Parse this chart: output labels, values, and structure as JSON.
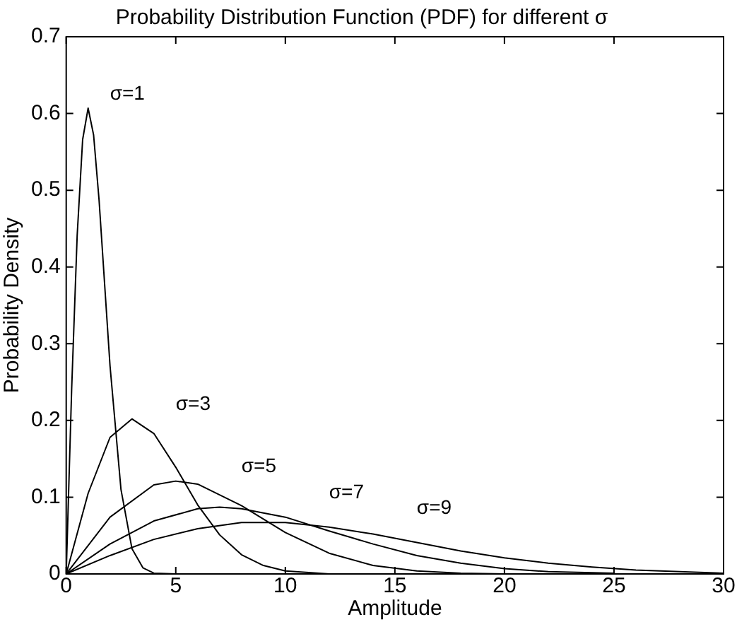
{
  "chart_data": {
    "type": "line",
    "title": "Probability Distribution Function (PDF) for different σ",
    "xlabel": "Amplitude",
    "ylabel": "Probability Density",
    "xlim": [
      0,
      30
    ],
    "xticks": [
      0,
      5,
      10,
      15,
      20,
      25,
      30
    ],
    "ylim": [
      0,
      0.7
    ],
    "yticks": [
      0,
      0.1,
      0.2,
      0.3,
      0.4,
      0.5,
      0.6,
      0.7
    ],
    "grid": false,
    "legend": false,
    "marker": "none",
    "line_style": "solid",
    "series": [
      {
        "name": "σ=1",
        "color": "#000000",
        "x": [
          0,
          0.25,
          0.5,
          0.75,
          1,
          1.25,
          1.5,
          2,
          2.5,
          3,
          3.5,
          4,
          5
        ],
        "values": [
          0,
          0.242,
          0.441,
          0.566,
          0.607,
          0.572,
          0.487,
          0.271,
          0.11,
          0.033,
          0.008,
          0.001,
          0
        ]
      },
      {
        "name": "σ=3",
        "color": "#000000",
        "x": [
          0,
          1,
          2,
          3,
          4,
          5,
          6,
          7,
          8,
          9,
          10,
          12
        ],
        "values": [
          0,
          0.105,
          0.178,
          0.202,
          0.183,
          0.139,
          0.09,
          0.051,
          0.025,
          0.011,
          0.004,
          0
        ]
      },
      {
        "name": "σ=5",
        "color": "#000000",
        "x": [
          0,
          2,
          4,
          5,
          6,
          8,
          10,
          12,
          14,
          16,
          18,
          20
        ],
        "values": [
          0,
          0.074,
          0.116,
          0.121,
          0.117,
          0.089,
          0.054,
          0.027,
          0.011,
          0.004,
          0.001,
          0
        ]
      },
      {
        "name": "σ=7",
        "color": "#000000",
        "x": [
          0,
          2,
          4,
          6,
          7,
          8,
          10,
          12,
          14,
          16,
          18,
          20,
          22,
          25
        ],
        "values": [
          0,
          0.039,
          0.069,
          0.085,
          0.087,
          0.085,
          0.074,
          0.056,
          0.039,
          0.024,
          0.014,
          0.007,
          0.003,
          0.001
        ]
      },
      {
        "name": "σ=9",
        "color": "#000000",
        "x": [
          0,
          2,
          4,
          6,
          8,
          9,
          10,
          12,
          14,
          16,
          18,
          20,
          22,
          24,
          26,
          28,
          30
        ],
        "values": [
          0,
          0.024,
          0.045,
          0.059,
          0.067,
          0.067,
          0.067,
          0.061,
          0.052,
          0.041,
          0.03,
          0.021,
          0.014,
          0.009,
          0.005,
          0.003,
          0.001
        ]
      }
    ]
  }
}
